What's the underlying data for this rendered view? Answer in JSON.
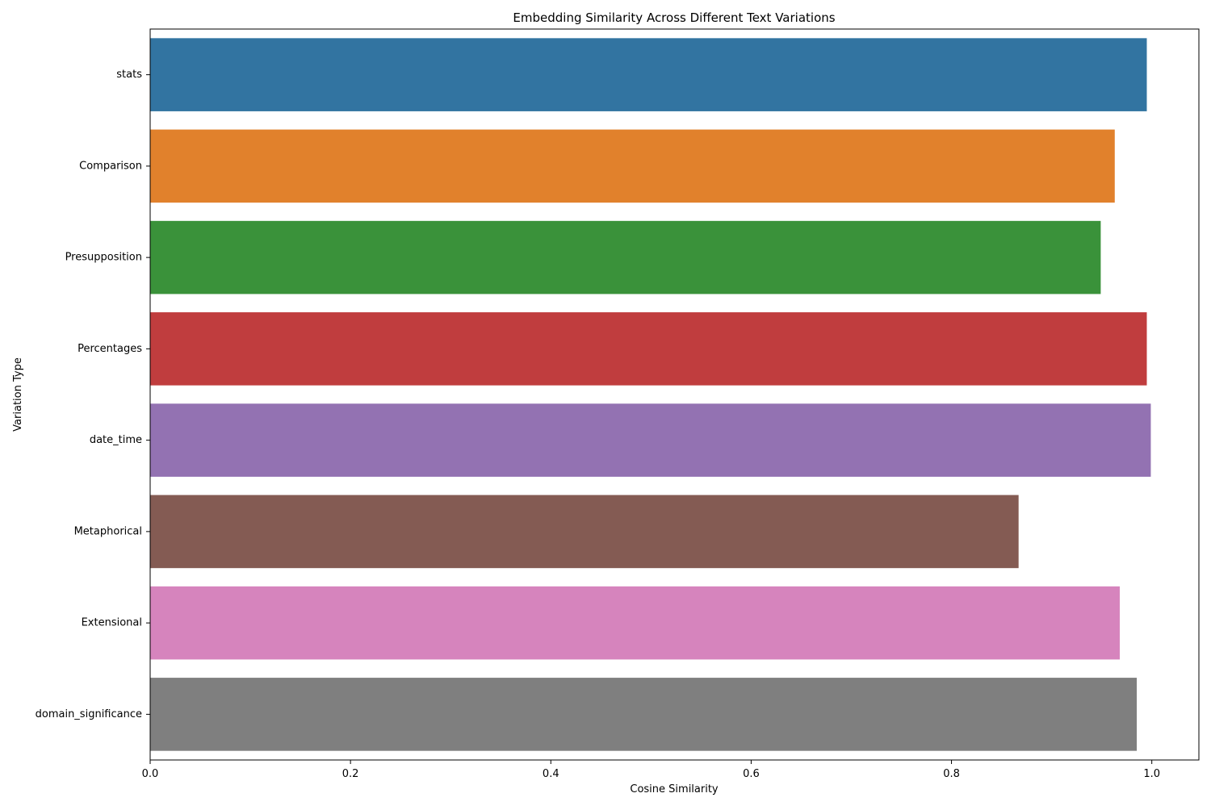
{
  "chart_data": {
    "type": "bar",
    "orientation": "horizontal",
    "title": "Embedding Similarity Across Different Text Variations",
    "xlabel": "Cosine Similarity",
    "ylabel": "Variation Type",
    "categories": [
      "stats",
      "Comparison",
      "Presupposition",
      "Percentages",
      "date_time",
      "Metaphorical",
      "Extensional",
      "domain_significance"
    ],
    "values": [
      0.995,
      0.963,
      0.949,
      0.995,
      0.999,
      0.867,
      0.968,
      0.985
    ],
    "xlim": [
      0.0,
      1.047
    ],
    "xticks": [
      0.0,
      0.2,
      0.4,
      0.6,
      0.8,
      1.0
    ],
    "xtick_labels": [
      "0.0",
      "0.2",
      "0.4",
      "0.6",
      "0.8",
      "1.0"
    ],
    "colors": [
      "#3274a1",
      "#e1812c",
      "#3a923a",
      "#c03d3e",
      "#9372b2",
      "#845b53",
      "#d684bd",
      "#7f7f7f"
    ],
    "grid": false,
    "legend": "none"
  }
}
